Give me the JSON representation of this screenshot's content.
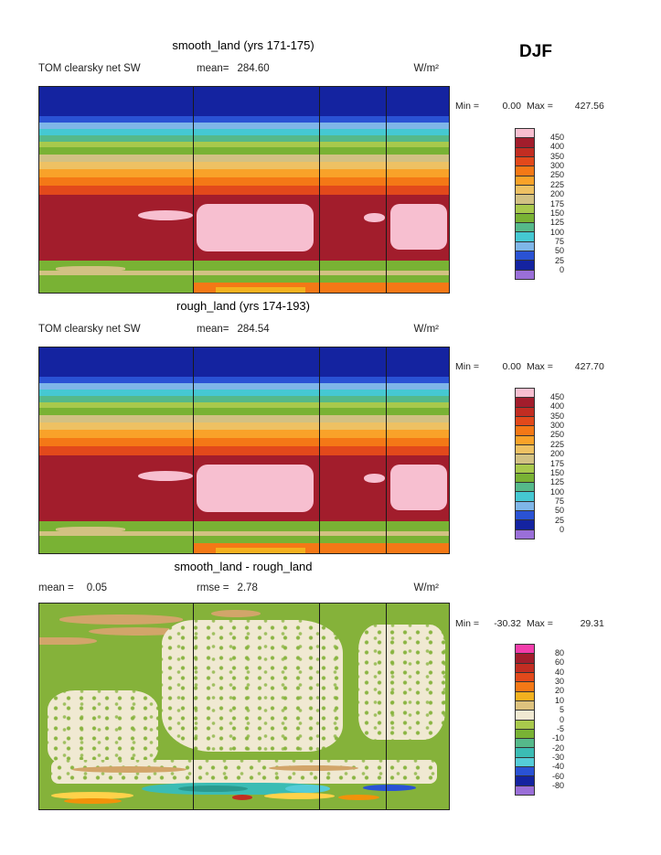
{
  "season_label": "DJF",
  "panels": [
    {
      "title": "smooth_land (yrs 171-175)",
      "header": {
        "left_label": "TOM clearsky net SW",
        "left_value": "",
        "mid_label": "mean=",
        "mid_value": "284.60",
        "units": "W/m²"
      },
      "legend": {
        "min_label": "Min =",
        "min_value": "0.00",
        "max_label": "Max =",
        "max_value": "427.56"
      }
    },
    {
      "title": "rough_land (yrs 174-193)",
      "header": {
        "left_label": "TOM clearsky net SW",
        "left_value": "",
        "mid_label": "mean=",
        "mid_value": "284.54",
        "units": "W/m²"
      },
      "legend": {
        "min_label": "Min =",
        "min_value": "0.00",
        "max_label": "Max =",
        "max_value": "427.70"
      }
    },
    {
      "title": "smooth_land - rough_land",
      "header": {
        "left_label": "mean =",
        "left_value": "0.05",
        "mid_label": "rmse =",
        "mid_value": "2.78",
        "units": "W/m²"
      },
      "legend": {
        "min_label": "Min =",
        "min_value": "-30.32",
        "max_label": "Max =",
        "max_value": "29.31"
      }
    }
  ],
  "chart_data": [
    {
      "type": "heatmap",
      "title": "smooth_land (yrs 171-175)",
      "variable": "TOM clearsky net SW",
      "season": "DJF",
      "units": "W/m^2",
      "stats": {
        "mean": 284.6,
        "min": 0.0,
        "max": 427.56
      },
      "colorbar": {
        "position": "right",
        "levels": [
          450,
          400,
          350,
          300,
          250,
          225,
          200,
          175,
          150,
          125,
          100,
          75,
          50,
          25,
          0
        ],
        "colors": [
          "#f7bfd0",
          "#a21d2c",
          "#c22d22",
          "#e2491b",
          "#f47816",
          "#f9a229",
          "#eec163",
          "#d2c183",
          "#a8c94c",
          "#79b234",
          "#55b98a",
          "#45c8d2",
          "#7fb6e8",
          "#2a52d4",
          "#1423a0",
          "#9a6fd8"
        ]
      },
      "map": {
        "bands": [
          {
            "frac": 0.14,
            "color": "#1423a0",
            "v": 10
          },
          {
            "frac": 0.035,
            "color": "#2a52d4",
            "v": 35
          },
          {
            "frac": 0.03,
            "color": "#7fb6e8",
            "v": 60
          },
          {
            "frac": 0.03,
            "color": "#45c8d2",
            "v": 85
          },
          {
            "frac": 0.03,
            "color": "#55b98a",
            "v": 110
          },
          {
            "frac": 0.03,
            "color": "#a8c94c",
            "v": 140
          },
          {
            "frac": 0.035,
            "color": "#79b234",
            "v": 160
          },
          {
            "frac": 0.035,
            "color": "#d2c183",
            "v": 185
          },
          {
            "frac": 0.035,
            "color": "#eec163",
            "v": 210
          },
          {
            "frac": 0.04,
            "color": "#f9a229",
            "v": 235
          },
          {
            "frac": 0.04,
            "color": "#f47816",
            "v": 260
          },
          {
            "frac": 0.045,
            "color": "#e2491b",
            "v": 290
          },
          {
            "frac": 0.32,
            "color": "#a21d2c",
            "v": 360
          },
          {
            "frac": 0.05,
            "color": "#79b234",
            "v": 160
          },
          {
            "frac": 0.02,
            "color": "#d2c183",
            "v": 190
          },
          {
            "frac": 0.085,
            "color": "#79b234",
            "v": 160
          }
        ],
        "patches": [
          {
            "x": 0.385,
            "y": 0.57,
            "w": 0.285,
            "h": 0.23,
            "color": "#f7bfd0",
            "r": "12px",
            "v": 425
          },
          {
            "x": 0.857,
            "y": 0.57,
            "w": 0.138,
            "h": 0.22,
            "color": "#f7bfd0",
            "r": "10px",
            "v": 425
          },
          {
            "x": 0.24,
            "y": 0.6,
            "w": 0.135,
            "h": 0.05,
            "color": "#f7bfd0",
            "r": "50%",
            "v": 410
          },
          {
            "x": 0.793,
            "y": 0.615,
            "w": 0.05,
            "h": 0.042,
            "color": "#f7bfd0",
            "r": "50%",
            "v": 405
          },
          {
            "x": 0.378,
            "y": 0.952,
            "w": 0.622,
            "h": 0.048,
            "color": "#f47816",
            "v": 260
          },
          {
            "x": 0.43,
            "y": 0.974,
            "w": 0.22,
            "h": 0.026,
            "color": "#f3b11f",
            "v": 230
          },
          {
            "x": 0.04,
            "y": 0.872,
            "w": 0.17,
            "h": 0.024,
            "color": "#d2c183",
            "r": "40%",
            "v": 185
          }
        ],
        "dividers": [
          0.375,
          0.683,
          0.845
        ]
      }
    },
    {
      "type": "heatmap",
      "title": "rough_land (yrs 174-193)",
      "variable": "TOM clearsky net SW",
      "season": "DJF",
      "units": "W/m^2",
      "stats": {
        "mean": 284.54,
        "min": 0.0,
        "max": 427.7
      },
      "colorbar": {
        "position": "right",
        "levels": [
          450,
          400,
          350,
          300,
          250,
          225,
          200,
          175,
          150,
          125,
          100,
          75,
          50,
          25,
          0
        ],
        "colors": [
          "#f7bfd0",
          "#a21d2c",
          "#c22d22",
          "#e2491b",
          "#f47816",
          "#f9a229",
          "#eec163",
          "#d2c183",
          "#a8c94c",
          "#79b234",
          "#55b98a",
          "#45c8d2",
          "#7fb6e8",
          "#2a52d4",
          "#1423a0",
          "#9a6fd8"
        ]
      },
      "map": {
        "bands": [
          {
            "frac": 0.14,
            "color": "#1423a0",
            "v": 10
          },
          {
            "frac": 0.035,
            "color": "#2a52d4",
            "v": 35
          },
          {
            "frac": 0.03,
            "color": "#7fb6e8",
            "v": 60
          },
          {
            "frac": 0.03,
            "color": "#45c8d2",
            "v": 85
          },
          {
            "frac": 0.03,
            "color": "#55b98a",
            "v": 110
          },
          {
            "frac": 0.03,
            "color": "#a8c94c",
            "v": 140
          },
          {
            "frac": 0.035,
            "color": "#79b234",
            "v": 160
          },
          {
            "frac": 0.035,
            "color": "#d2c183",
            "v": 185
          },
          {
            "frac": 0.035,
            "color": "#eec163",
            "v": 210
          },
          {
            "frac": 0.04,
            "color": "#f9a229",
            "v": 235
          },
          {
            "frac": 0.04,
            "color": "#f47816",
            "v": 260
          },
          {
            "frac": 0.045,
            "color": "#e2491b",
            "v": 290
          },
          {
            "frac": 0.32,
            "color": "#a21d2c",
            "v": 360
          },
          {
            "frac": 0.05,
            "color": "#79b234",
            "v": 160
          },
          {
            "frac": 0.02,
            "color": "#d2c183",
            "v": 190
          },
          {
            "frac": 0.085,
            "color": "#79b234",
            "v": 160
          }
        ],
        "patches": [
          {
            "x": 0.385,
            "y": 0.57,
            "w": 0.285,
            "h": 0.23,
            "color": "#f7bfd0",
            "r": "12px",
            "v": 425
          },
          {
            "x": 0.857,
            "y": 0.57,
            "w": 0.138,
            "h": 0.22,
            "color": "#f7bfd0",
            "r": "10px",
            "v": 425
          },
          {
            "x": 0.24,
            "y": 0.6,
            "w": 0.135,
            "h": 0.05,
            "color": "#f7bfd0",
            "r": "50%",
            "v": 410
          },
          {
            "x": 0.793,
            "y": 0.615,
            "w": 0.05,
            "h": 0.042,
            "color": "#f7bfd0",
            "r": "50%",
            "v": 405
          },
          {
            "x": 0.378,
            "y": 0.952,
            "w": 0.622,
            "h": 0.048,
            "color": "#f47816",
            "v": 260
          },
          {
            "x": 0.43,
            "y": 0.974,
            "w": 0.22,
            "h": 0.026,
            "color": "#f3b11f",
            "v": 230
          },
          {
            "x": 0.04,
            "y": 0.872,
            "w": 0.17,
            "h": 0.024,
            "color": "#d2c183",
            "r": "40%",
            "v": 185
          }
        ],
        "dividers": [
          0.375,
          0.683,
          0.845
        ]
      }
    },
    {
      "type": "heatmap",
      "title": "smooth_land - rough_land",
      "season": "DJF",
      "units": "W/m^2",
      "stats": {
        "mean": 0.05,
        "rmse": 2.78,
        "min": -30.32,
        "max": 29.31
      },
      "colorbar": {
        "position": "right",
        "levels": [
          80,
          60,
          40,
          30,
          20,
          10,
          5,
          0,
          -5,
          -10,
          -20,
          -30,
          -40,
          -60,
          -80
        ],
        "colors": [
          "#f23dab",
          "#a21d2c",
          "#c22d22",
          "#e2491b",
          "#f47816",
          "#f3b11f",
          "#ddc27e",
          "#f0e9d2",
          "#a8c94c",
          "#79b234",
          "#55b98a",
          "#3bbcb4",
          "#55ccd8",
          "#2a52d4",
          "#1423a0",
          "#9a6fd8"
        ]
      },
      "map": {
        "bands": [
          {
            "frac": 1.0,
            "color": "#85b23a",
            "v": -5
          }
        ],
        "patches": [
          {
            "x": 0.05,
            "y": 0.055,
            "w": 0.3,
            "h": 0.045,
            "color": "#d2a56a",
            "r": "50%",
            "v": 8
          },
          {
            "x": 0.12,
            "y": 0.115,
            "w": 0.24,
            "h": 0.04,
            "color": "#d2a56a",
            "r": "50%",
            "v": 8
          },
          {
            "x": 0.0,
            "y": 0.165,
            "w": 0.14,
            "h": 0.035,
            "color": "#d2a56a",
            "r": "0 50% 50% 0",
            "v": 8
          },
          {
            "x": 0.42,
            "y": 0.03,
            "w": 0.12,
            "h": 0.035,
            "color": "#d2a56a",
            "r": "50%",
            "v": 8
          },
          {
            "x": 0.3,
            "y": 0.08,
            "w": 0.44,
            "h": 0.64,
            "color": "#f0e9d2",
            "speckle": true,
            "r": "18% 25% 20% 28%",
            "v": 2
          },
          {
            "x": 0.78,
            "y": 0.1,
            "w": 0.21,
            "h": 0.56,
            "color": "#f0e9d2",
            "speckle": true,
            "r": "22% 18% 25% 20%",
            "v": 2
          },
          {
            "x": 0.02,
            "y": 0.42,
            "w": 0.27,
            "h": 0.38,
            "color": "#f0e9d2",
            "speckle": true,
            "r": "25%",
            "v": 2
          },
          {
            "x": 0.03,
            "y": 0.76,
            "w": 0.94,
            "h": 0.115,
            "color": "#f0e9d2",
            "speckle": true,
            "r": "8px",
            "v": 2
          },
          {
            "x": 0.08,
            "y": 0.79,
            "w": 0.28,
            "h": 0.03,
            "color": "#d2a56a",
            "r": "50%",
            "v": 8
          },
          {
            "x": 0.56,
            "y": 0.785,
            "w": 0.22,
            "h": 0.028,
            "color": "#d2a56a",
            "r": "50%",
            "v": 8
          },
          {
            "x": 0.25,
            "y": 0.872,
            "w": 0.46,
            "h": 0.055,
            "color": "#3bbcb4",
            "r": "40%/60%",
            "v": -25
          },
          {
            "x": 0.34,
            "y": 0.883,
            "w": 0.17,
            "h": 0.033,
            "color": "#2a9a8f",
            "r": "50%",
            "v": -30
          },
          {
            "x": 0.6,
            "y": 0.878,
            "w": 0.11,
            "h": 0.04,
            "color": "#55ccd8",
            "r": "50%",
            "v": -20
          },
          {
            "x": 0.79,
            "y": 0.882,
            "w": 0.13,
            "h": 0.03,
            "color": "#2a52d4",
            "r": "50%",
            "v": -30
          },
          {
            "x": 0.03,
            "y": 0.915,
            "w": 0.2,
            "h": 0.035,
            "color": "#ffd24a",
            "r": "50%",
            "v": 15
          },
          {
            "x": 0.06,
            "y": 0.945,
            "w": 0.14,
            "h": 0.03,
            "color": "#f2920a",
            "r": "50%",
            "v": 22
          },
          {
            "x": 0.55,
            "y": 0.92,
            "w": 0.17,
            "h": 0.03,
            "color": "#ffd24a",
            "r": "50%",
            "v": 15
          },
          {
            "x": 0.73,
            "y": 0.928,
            "w": 0.1,
            "h": 0.028,
            "color": "#f2920a",
            "r": "50%",
            "v": 22
          },
          {
            "x": 0.47,
            "y": 0.928,
            "w": 0.05,
            "h": 0.026,
            "color": "#c22d22",
            "r": "50%",
            "v": 28
          }
        ],
        "dividers": [
          0.375,
          0.683,
          0.845
        ]
      }
    }
  ]
}
